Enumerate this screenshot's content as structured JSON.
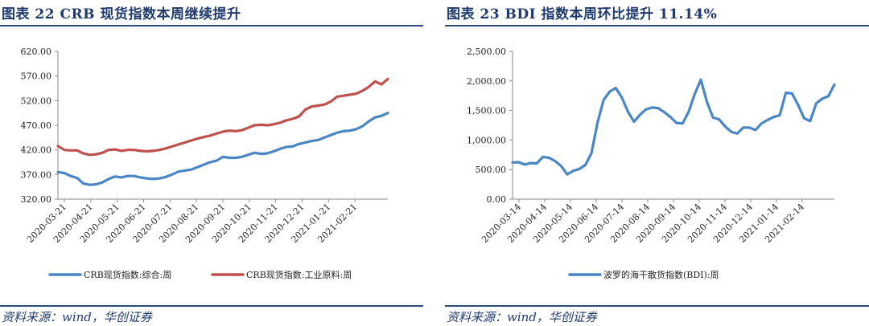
{
  "left": {
    "title": "图表 22   CRB 现货指数本周继续提升",
    "source": "资料来源：wind，华创证券"
  },
  "right": {
    "title": "图表 23   BDI 指数本周环比提升 11.14%",
    "source": "资料来源：wind，华创证券"
  },
  "chart_data": [
    {
      "type": "line",
      "title": "CRB 现货指数本周继续提升",
      "xlabel": "",
      "ylabel": "",
      "ylim": [
        320,
        620
      ],
      "yticks": [
        "620.00",
        "570.00",
        "520.00",
        "470.00",
        "420.00",
        "370.00",
        "320.00"
      ],
      "ytick_values": [
        620,
        570,
        520,
        470,
        420,
        370,
        320
      ],
      "xticks": [
        "2020-03-21",
        "2020-04-21",
        "2020-05-21",
        "2020-06-21",
        "2020-07-21",
        "2020-08-21",
        "2020-09-21",
        "2020-10-21",
        "2020-11-21",
        "2020-12-21",
        "2021-01-21",
        "2021-02-21"
      ],
      "legend_position": "bottom",
      "series": [
        {
          "name": "CRB现货指数:综合:周",
          "color": "#4a86c6",
          "values": [
            375,
            373,
            367,
            363,
            352,
            349,
            350,
            354,
            361,
            366,
            364,
            367,
            367,
            364,
            362,
            361,
            362,
            365,
            370,
            376,
            378,
            380,
            385,
            390,
            395,
            398,
            406,
            404,
            404,
            406,
            410,
            414,
            412,
            413,
            417,
            422,
            426,
            427,
            432,
            435,
            438,
            440,
            445,
            450,
            455,
            458,
            459,
            462,
            468,
            478,
            486,
            489,
            495
          ]
        },
        {
          "name": "CRB现货指数:工业原料:周",
          "color": "#c0504d",
          "values": [
            428,
            420,
            419,
            419,
            413,
            410,
            411,
            414,
            420,
            421,
            418,
            420,
            420,
            418,
            417,
            418,
            420,
            423,
            427,
            431,
            435,
            439,
            443,
            446,
            449,
            453,
            457,
            459,
            458,
            460,
            465,
            470,
            471,
            470,
            472,
            475,
            480,
            483,
            488,
            502,
            508,
            510,
            512,
            518,
            528,
            530,
            532,
            534,
            540,
            548,
            559,
            553,
            564
          ]
        }
      ]
    },
    {
      "type": "line",
      "title": "BDI 指数本周环比提升 11.14%",
      "xlabel": "",
      "ylabel": "",
      "ylim": [
        0,
        2500
      ],
      "yticks": [
        "2,500.00",
        "2,000.00",
        "1,500.00",
        "1,000.00",
        "500.00",
        "0.00"
      ],
      "ytick_values": [
        2500,
        2000,
        1500,
        1000,
        500,
        0
      ],
      "xticks": [
        "2020-03-14",
        "2020-04-14",
        "2020-05-14",
        "2020-06-14",
        "2020-07-14",
        "2020-08-14",
        "2020-09-14",
        "2020-10-14",
        "2020-11-14",
        "2020-12-14",
        "2021-01-14",
        "2021-02-14"
      ],
      "legend_position": "bottom",
      "series": [
        {
          "name": "波罗的海干散货指数(BDI):周",
          "color": "#4a86c6",
          "values": [
            620,
            625,
            585,
            610,
            605,
            715,
            700,
            645,
            560,
            420,
            480,
            510,
            580,
            780,
            1300,
            1680,
            1820,
            1880,
            1720,
            1480,
            1310,
            1430,
            1520,
            1550,
            1540,
            1470,
            1390,
            1290,
            1280,
            1480,
            1780,
            2020,
            1650,
            1380,
            1350,
            1230,
            1140,
            1110,
            1210,
            1210,
            1170,
            1280,
            1340,
            1390,
            1420,
            1800,
            1790,
            1600,
            1370,
            1320,
            1620,
            1700,
            1740,
            1940
          ]
        }
      ]
    }
  ]
}
